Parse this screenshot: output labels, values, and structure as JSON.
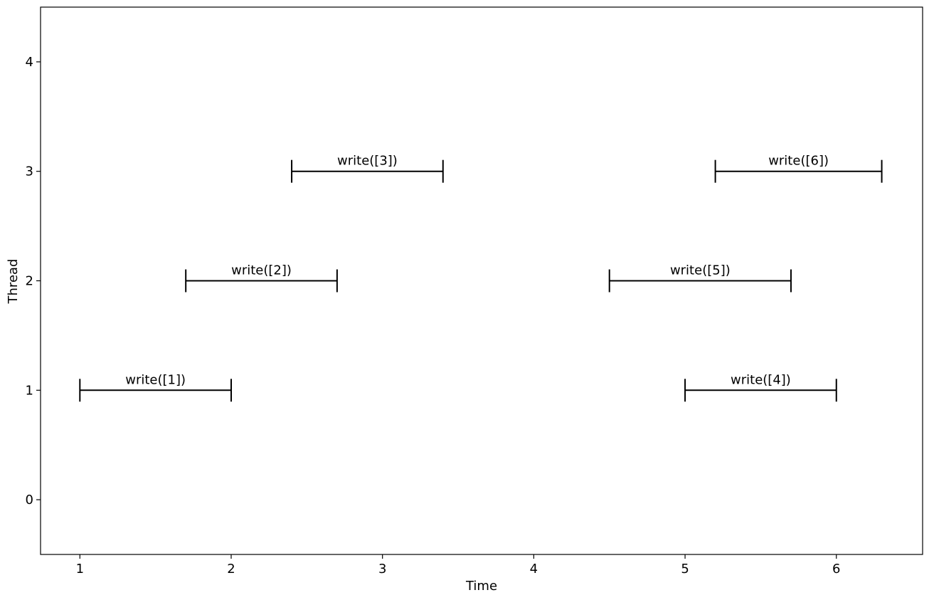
{
  "chart_data": {
    "type": "interval",
    "xlabel": "Time",
    "ylabel": "Thread",
    "xlim": [
      0.74,
      6.57
    ],
    "ylim": [
      -0.5,
      4.5
    ],
    "x_ticks": [
      1,
      2,
      3,
      4,
      5,
      6
    ],
    "y_ticks": [
      0,
      1,
      2,
      3,
      4
    ],
    "grid": false,
    "intervals": [
      {
        "label": "write([1])",
        "thread": 1,
        "start": 1.0,
        "end": 2.0
      },
      {
        "label": "write([2])",
        "thread": 2,
        "start": 1.7,
        "end": 2.7
      },
      {
        "label": "write([3])",
        "thread": 3,
        "start": 2.4,
        "end": 3.4
      },
      {
        "label": "write([4])",
        "thread": 1,
        "start": 5.0,
        "end": 6.0
      },
      {
        "label": "write([5])",
        "thread": 2,
        "start": 4.5,
        "end": 5.7
      },
      {
        "label": "write([6])",
        "thread": 3,
        "start": 5.2,
        "end": 6.3
      }
    ],
    "colors": {
      "line": "#000000",
      "background": "#ffffff"
    }
  }
}
